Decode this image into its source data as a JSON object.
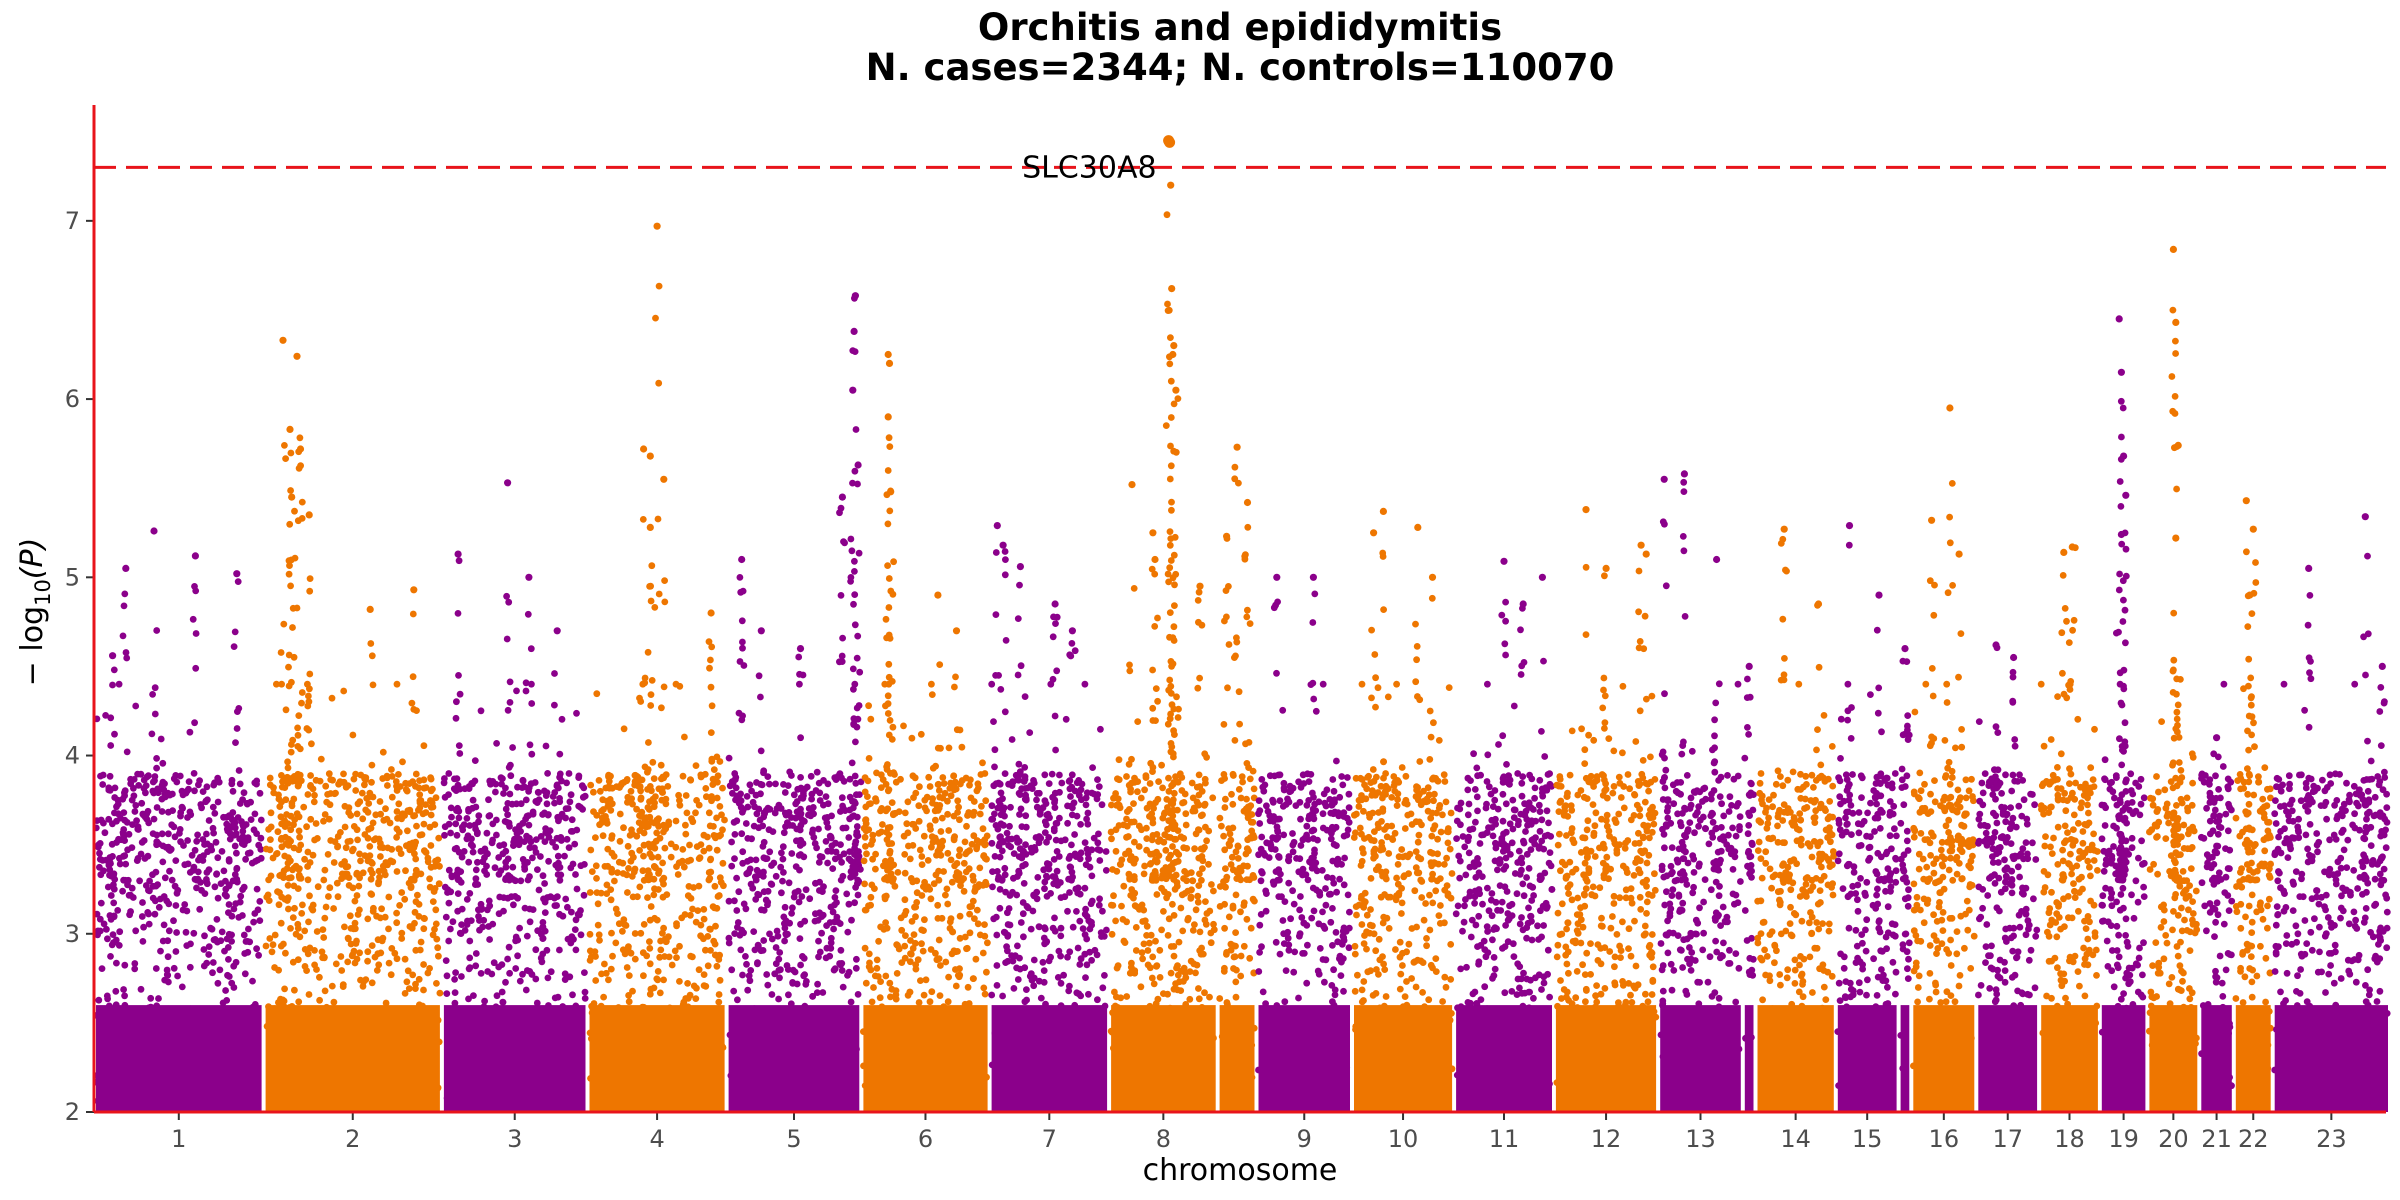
{
  "chart_data": {
    "type": "scatter",
    "title_line1": "Orchitis and epididymitis",
    "title_line2": "N. cases=2344; N. controls=110070",
    "xlabel": "chromosome",
    "ylabel_prefix": "− log",
    "ylabel_sub": "10",
    "ylabel_suffix": "(P)",
    "ylim": [
      2,
      7.65
    ],
    "yticks": [
      "2",
      "3",
      "4",
      "5",
      "6",
      "7"
    ],
    "significance_threshold": 7.3,
    "colors": {
      "odd": "#8b008b",
      "even": "#ee7600",
      "threshold": "#e8141b",
      "axis": "#e8141b"
    },
    "annotation": {
      "label": "SLC30A8",
      "chromosome": 8,
      "pos": 0.55,
      "y": 7.45
    },
    "chromosomes": [
      {
        "label": "1",
        "length": 7.6,
        "peaks": [
          [
            0.1,
            4.56
          ],
          [
            0.18,
            5.05
          ],
          [
            0.35,
            5.26
          ],
          [
            0.6,
            5.12
          ],
          [
            0.85,
            5.02
          ]
        ]
      },
      {
        "label": "2",
        "length": 8.0,
        "peaks": [
          [
            0.1,
            6.33
          ],
          [
            0.14,
            5.83
          ],
          [
            0.15,
            5.45
          ],
          [
            0.18,
            6.24
          ],
          [
            0.2,
            5.72
          ],
          [
            0.25,
            5.35
          ],
          [
            0.6,
            4.82
          ],
          [
            0.85,
            4.93
          ]
        ]
      },
      {
        "label": "3",
        "length": 6.5,
        "peaks": [
          [
            0.1,
            5.13
          ],
          [
            0.45,
            5.53
          ],
          [
            0.6,
            5.0
          ],
          [
            0.8,
            4.7
          ]
        ]
      },
      {
        "label": "4",
        "length": 6.2,
        "peaks": [
          [
            0.4,
            5.72
          ],
          [
            0.45,
            5.68
          ],
          [
            0.5,
            6.97
          ],
          [
            0.55,
            5.55
          ],
          [
            0.45,
            5.28
          ],
          [
            0.9,
            4.8
          ]
        ]
      },
      {
        "label": "5",
        "length": 6.0,
        "peaks": [
          [
            0.1,
            5.1
          ],
          [
            0.25,
            4.7
          ],
          [
            0.55,
            4.6
          ],
          [
            0.87,
            5.45
          ],
          [
            0.97,
            6.58
          ],
          [
            0.96,
            6.38
          ],
          [
            0.95,
            6.05
          ],
          [
            0.99,
            5.63
          ]
        ]
      },
      {
        "label": "6",
        "length": 5.7,
        "peaks": [
          [
            0.2,
            6.25
          ],
          [
            0.21,
            6.2
          ],
          [
            0.2,
            5.9
          ],
          [
            0.22,
            5.48
          ],
          [
            0.6,
            4.9
          ],
          [
            0.75,
            4.7
          ]
        ]
      },
      {
        "label": "7",
        "length": 5.3,
        "peaks": [
          [
            0.05,
            5.29
          ],
          [
            0.1,
            5.18
          ],
          [
            0.25,
            5.06
          ],
          [
            0.55,
            4.85
          ],
          [
            0.7,
            4.7
          ]
        ]
      },
      {
        "label": "8",
        "length": 4.8,
        "peaks": [
          [
            0.55,
            7.45
          ],
          [
            0.56,
            7.44
          ],
          [
            0.57,
            7.2
          ],
          [
            0.58,
            6.62
          ],
          [
            0.6,
            6.3
          ],
          [
            0.59,
            6.25
          ],
          [
            0.62,
            6.05
          ],
          [
            0.2,
            5.52
          ],
          [
            0.4,
            5.25
          ],
          [
            0.42,
            5.1
          ],
          [
            0.85,
            4.95
          ]
        ]
      },
      {
        "label": "",
        "length": 1.6,
        "peaks": [
          [
            0.5,
            5.73
          ],
          [
            0.2,
            5.23
          ],
          [
            0.8,
            5.42
          ]
        ]
      },
      {
        "label": "9",
        "length": 4.2,
        "peaks": [
          [
            0.2,
            5.0
          ],
          [
            0.6,
            5.0
          ]
        ]
      },
      {
        "label": "10",
        "length": 4.5,
        "peaks": [
          [
            0.2,
            5.25
          ],
          [
            0.3,
            5.37
          ],
          [
            0.65,
            5.28
          ],
          [
            0.8,
            5.0
          ]
        ]
      },
      {
        "label": "11",
        "length": 4.4,
        "peaks": [
          [
            0.5,
            5.09
          ],
          [
            0.7,
            4.85
          ],
          [
            0.9,
            5.0
          ]
        ]
      },
      {
        "label": "12",
        "length": 4.6,
        "peaks": [
          [
            0.3,
            5.38
          ],
          [
            0.5,
            5.05
          ],
          [
            0.85,
            5.18
          ],
          [
            0.9,
            5.13
          ]
        ]
      },
      {
        "label": "13",
        "length": 3.7,
        "peaks": [
          [
            0.05,
            5.55
          ],
          [
            0.3,
            5.58
          ],
          [
            0.7,
            5.1
          ]
        ]
      },
      {
        "label": "",
        "length": 0.4,
        "peaks": [
          [
            0.5,
            4.5
          ]
        ]
      },
      {
        "label": "14",
        "length": 3.5,
        "peaks": [
          [
            0.35,
            5.27
          ],
          [
            0.8,
            4.85
          ]
        ]
      },
      {
        "label": "15",
        "length": 2.7,
        "peaks": [
          [
            0.2,
            5.29
          ],
          [
            0.7,
            4.9
          ]
        ]
      },
      {
        "label": "",
        "length": 0.4,
        "peaks": [
          [
            0.5,
            4.6
          ]
        ]
      },
      {
        "label": "16",
        "length": 2.8,
        "peaks": [
          [
            0.6,
            5.95
          ],
          [
            0.3,
            5.32
          ],
          [
            0.75,
            5.13
          ]
        ]
      },
      {
        "label": "17",
        "length": 2.7,
        "peaks": [
          [
            0.3,
            4.62
          ],
          [
            0.6,
            4.55
          ]
        ]
      },
      {
        "label": "18",
        "length": 2.6,
        "peaks": [
          [
            0.4,
            5.14
          ],
          [
            0.55,
            5.17
          ]
        ]
      },
      {
        "label": "19",
        "length": 2.0,
        "peaks": [
          [
            0.4,
            6.45
          ],
          [
            0.45,
            6.15
          ],
          [
            0.5,
            5.68
          ],
          [
            0.55,
            5.46
          ],
          [
            0.45,
            5.24
          ]
        ]
      },
      {
        "label": "20",
        "length": 2.2,
        "peaks": [
          [
            0.5,
            6.84
          ],
          [
            0.55,
            6.43
          ],
          [
            0.6,
            5.74
          ],
          [
            0.55,
            5.22
          ]
        ]
      },
      {
        "label": "21",
        "length": 1.4,
        "peaks": [
          [
            0.5,
            4.1
          ]
        ]
      },
      {
        "label": "22",
        "length": 1.6,
        "peaks": [
          [
            0.3,
            5.43
          ],
          [
            0.5,
            5.27
          ],
          [
            0.4,
            4.9
          ]
        ]
      },
      {
        "label": "23",
        "length": 5.2,
        "peaks": [
          [
            0.3,
            5.05
          ],
          [
            0.8,
            5.34
          ],
          [
            0.95,
            4.5
          ]
        ]
      }
    ]
  }
}
